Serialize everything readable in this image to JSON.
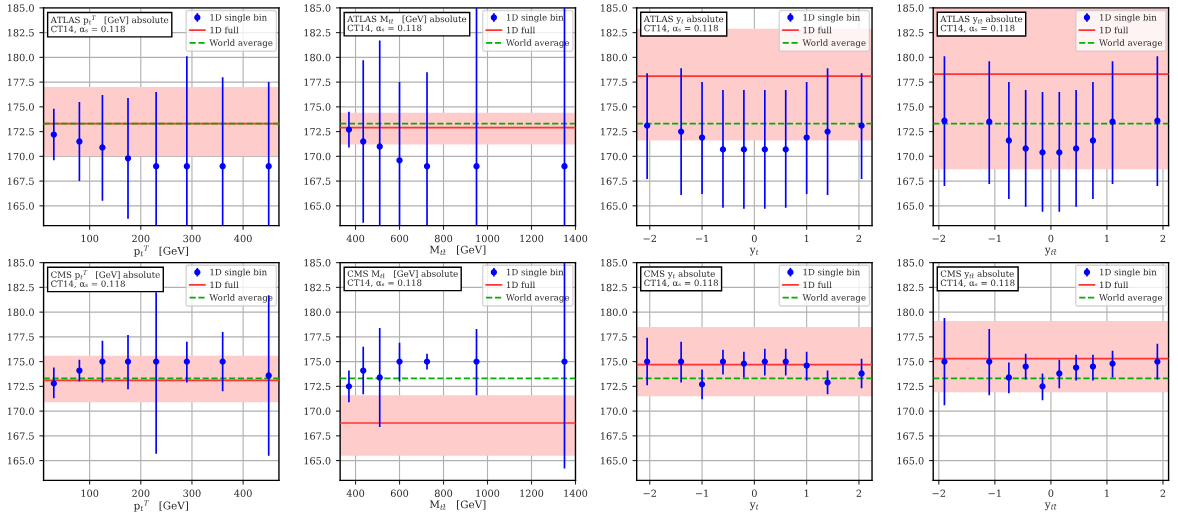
{
  "chart_data": [
    {
      "type": "scatter",
      "xlabel": "p$_{t}$$^{T}$   [GeV]",
      "annotations": [
        "ATLAS p$_{t}$$^{T}$   [GeV] absolute\nCT14, αₛ = 0.118"
      ],
      "xlim": [
        10,
        470
      ],
      "xticks": [
        100,
        200,
        300,
        400
      ],
      "ylim": [
        163,
        185
      ],
      "yticks": [
        {
          "value": 165,
          "label": "165.0"
        },
        {
          "value": 167.5,
          "label": "167.5"
        },
        {
          "value": 170,
          "label": "170.0"
        },
        {
          "value": 172.5,
          "label": "172.5"
        },
        {
          "value": 175,
          "label": "175.0"
        },
        {
          "value": 177.5,
          "label": "177.5"
        },
        {
          "value": 180,
          "label": "180.0"
        },
        {
          "value": 182.5,
          "label": "182.5"
        },
        {
          "value": 185,
          "label": "185.0"
        }
      ],
      "grid": true,
      "legend": "top right",
      "marker": "circle",
      "series": [
        {
          "name": "1D single bin",
          "color": "#0000ff",
          "x": [
            30,
            80,
            125,
            175,
            230,
            290,
            360,
            450
          ],
          "values": [
            172.2,
            171.5,
            170.9,
            169.8,
            169,
            169,
            169,
            169
          ],
          "errors": [
            [
              169.6,
              174.8
            ],
            [
              167.5,
              175.5
            ],
            [
              165.5,
              176.2
            ],
            [
              163.7,
              175.9
            ],
            [
              163,
              176.5
            ],
            [
              163,
              180.1
            ],
            [
              163,
              178
            ],
            [
              163,
              177.5
            ]
          ]
        }
      ],
      "ref_lines": [
        {
          "axis": "y",
          "value": 173.3,
          "label": "1D full",
          "color": "#ff3333",
          "line_style": "solid"
        },
        {
          "axis": "y",
          "value": 173.3,
          "label": "World average",
          "color": "#00b000",
          "line_style": "dashed"
        }
      ],
      "bands": [
        {
          "axis": "y",
          "from": 170,
          "to": 177,
          "color": "#ffcccc"
        }
      ]
    },
    {
      "type": "scatter",
      "xlabel": "M$_{tt̄}$   [GeV]",
      "annotations": [
        "ATLAS M$_{tt̄}$   [GeV] absolute\nCT14, αₛ = 0.118"
      ],
      "xlim": [
        330,
        1400
      ],
      "xticks": [
        400,
        600,
        800,
        1000,
        1200,
        1400
      ],
      "ylim": [
        163,
        185
      ],
      "yticks": [
        {
          "value": 165,
          "label": "165.0"
        },
        {
          "value": 167.5,
          "label": "167.5"
        },
        {
          "value": 170,
          "label": "170.0"
        },
        {
          "value": 172.5,
          "label": "172.5"
        },
        {
          "value": 175,
          "label": "175.0"
        },
        {
          "value": 177.5,
          "label": "177.5"
        },
        {
          "value": 180,
          "label": "180.0"
        },
        {
          "value": 182.5,
          "label": "182.5"
        },
        {
          "value": 185,
          "label": "185.0"
        }
      ],
      "grid": true,
      "legend": "top right",
      "marker": "circle",
      "series": [
        {
          "name": "1D single bin",
          "color": "#0000ff",
          "x": [
            370,
            435,
            510,
            600,
            725,
            950,
            1350
          ],
          "values": [
            172.7,
            171.5,
            171,
            169.6,
            169,
            169,
            169
          ],
          "errors": [
            [
              170.9,
              174.5
            ],
            [
              163.3,
              179.7
            ],
            [
              163,
              181.7
            ],
            [
              163,
              177.5
            ],
            [
              163,
              178.5
            ],
            [
              163,
              185
            ],
            [
              163,
              185
            ]
          ]
        }
      ],
      "ref_lines": [
        {
          "axis": "y",
          "value": 172.9,
          "label": "1D full",
          "color": "#ff3333",
          "line_style": "solid"
        },
        {
          "axis": "y",
          "value": 173.3,
          "label": "World average",
          "color": "#00b000",
          "line_style": "dashed"
        }
      ],
      "bands": [
        {
          "axis": "y",
          "from": 171.2,
          "to": 174.4,
          "color": "#ffcccc"
        }
      ]
    },
    {
      "type": "scatter",
      "xlabel": "y$_{t}$",
      "annotations": [
        "ATLAS y$_{t}$ absolute\nCT14, αₛ = 0.118"
      ],
      "xlim": [
        -2.25,
        2.25
      ],
      "xticks": [
        -2,
        -1,
        0,
        1,
        2
      ],
      "ylim": [
        163,
        185
      ],
      "yticks": [
        {
          "value": 165,
          "label": "165.0"
        },
        {
          "value": 167.5,
          "label": "167.5"
        },
        {
          "value": 170,
          "label": "170.0"
        },
        {
          "value": 172.5,
          "label": "172.5"
        },
        {
          "value": 175,
          "label": "175.0"
        },
        {
          "value": 177.5,
          "label": "177.5"
        },
        {
          "value": 180,
          "label": "180.0"
        },
        {
          "value": 182.5,
          "label": "182.5"
        },
        {
          "value": 185,
          "label": "185.0"
        }
      ],
      "grid": true,
      "legend": "top right",
      "marker": "circle",
      "series": [
        {
          "name": "1D single bin",
          "color": "#0000ff",
          "x": [
            -2.05,
            -1.4,
            -1,
            -0.6,
            -0.2,
            0.2,
            0.6,
            1,
            1.4,
            2.05
          ],
          "values": [
            173.1,
            172.5,
            171.9,
            170.7,
            170.7,
            170.7,
            170.7,
            171.9,
            172.5,
            173.1
          ],
          "errors": [
            [
              167.7,
              178.4
            ],
            [
              166.1,
              178.9
            ],
            [
              166.2,
              177.5
            ],
            [
              164.8,
              176.7
            ],
            [
              164.7,
              176.7
            ],
            [
              164.7,
              176.7
            ],
            [
              164.8,
              176.7
            ],
            [
              166.2,
              177.5
            ],
            [
              166.1,
              178.9
            ],
            [
              167.7,
              178.4
            ]
          ]
        }
      ],
      "ref_lines": [
        {
          "axis": "y",
          "value": 178.1,
          "label": "1D full",
          "color": "#ff3333",
          "line_style": "solid"
        },
        {
          "axis": "y",
          "value": 173.3,
          "label": "World average",
          "color": "#00b000",
          "line_style": "dashed"
        }
      ],
      "bands": [
        {
          "axis": "y",
          "from": 171.6,
          "to": 182.9,
          "color": "#ffcccc"
        }
      ]
    },
    {
      "type": "scatter",
      "xlabel": "y$_{tt̄}$",
      "annotations": [
        "ATLAS y$_{tt̄}$ absolute\nCT14, αₛ = 0.118"
      ],
      "xlim": [
        -2.1,
        2.1
      ],
      "xticks": [
        -2,
        -1,
        0,
        1,
        2
      ],
      "ylim": [
        163,
        185
      ],
      "yticks": [
        {
          "value": 165,
          "label": "165.0"
        },
        {
          "value": 167.5,
          "label": "167.5"
        },
        {
          "value": 170,
          "label": "170.0"
        },
        {
          "value": 172.5,
          "label": "172.5"
        },
        {
          "value": 175,
          "label": "175.0"
        },
        {
          "value": 177.5,
          "label": "177.5"
        },
        {
          "value": 180,
          "label": "180.0"
        },
        {
          "value": 182.5,
          "label": "182.5"
        },
        {
          "value": 185,
          "label": "185.0"
        }
      ],
      "grid": true,
      "legend": "top right",
      "marker": "circle",
      "series": [
        {
          "name": "1D single bin",
          "color": "#0000ff",
          "x": [
            -1.9,
            -1.1,
            -0.75,
            -0.45,
            -0.15,
            0.15,
            0.45,
            0.75,
            1.1,
            1.9
          ],
          "values": [
            173.6,
            173.5,
            171.6,
            170.8,
            170.4,
            170.4,
            170.8,
            171.6,
            173.5,
            173.6
          ],
          "errors": [
            [
              167,
              180.1
            ],
            [
              167.2,
              179.6
            ],
            [
              165.7,
              177.5
            ],
            [
              164.9,
              176.7
            ],
            [
              164.4,
              176.5
            ],
            [
              164.4,
              176.5
            ],
            [
              164.9,
              176.7
            ],
            [
              165.7,
              177.5
            ],
            [
              167.2,
              179.6
            ],
            [
              167,
              180.1
            ]
          ]
        }
      ],
      "ref_lines": [
        {
          "axis": "y",
          "value": 178.3,
          "label": "1D full",
          "color": "#ff3333",
          "line_style": "solid"
        },
        {
          "axis": "y",
          "value": 173.3,
          "label": "World average",
          "color": "#00b000",
          "line_style": "dashed"
        }
      ],
      "bands": [
        {
          "axis": "y",
          "from": 168.7,
          "to": 185,
          "color": "#ffcccc"
        }
      ]
    },
    {
      "type": "scatter",
      "xlabel": "p$_{t}$$^{T}$   [GeV]",
      "annotations": [
        "CMS p$_{t}$$^{T}$   [GeV] absolute\nCT14, αₛ = 0.118"
      ],
      "xlim": [
        10,
        470
      ],
      "xticks": [
        100,
        200,
        300,
        400
      ],
      "ylim": [
        163,
        185
      ],
      "yticks": [
        {
          "value": 165,
          "label": "165.0"
        },
        {
          "value": 167.5,
          "label": "167.5"
        },
        {
          "value": 170,
          "label": "170.0"
        },
        {
          "value": 172.5,
          "label": "172.5"
        },
        {
          "value": 175,
          "label": "175.0"
        },
        {
          "value": 177.5,
          "label": "177.5"
        },
        {
          "value": 180,
          "label": "180.0"
        },
        {
          "value": 182.5,
          "label": "182.5"
        },
        {
          "value": 185,
          "label": "185.0"
        }
      ],
      "grid": true,
      "legend": "top right",
      "marker": "circle",
      "series": [
        {
          "name": "1D single bin",
          "color": "#0000ff",
          "x": [
            30,
            80,
            125,
            175,
            230,
            290,
            360,
            450
          ],
          "values": [
            172.8,
            174.1,
            175,
            175,
            175,
            175,
            175,
            173.6
          ],
          "errors": [
            [
              171.3,
              174.4
            ],
            [
              173,
              175.2
            ],
            [
              172.9,
              177.1
            ],
            [
              172.2,
              177.7
            ],
            [
              165.7,
              182
            ],
            [
              172.9,
              177
            ],
            [
              172,
              178
            ],
            [
              165.5,
              181.7
            ]
          ]
        }
      ],
      "ref_lines": [
        {
          "axis": "y",
          "value": 173.1,
          "label": "1D full",
          "color": "#ff3333",
          "line_style": "solid"
        },
        {
          "axis": "y",
          "value": 173.3,
          "label": "World average",
          "color": "#00b000",
          "line_style": "dashed"
        }
      ],
      "bands": [
        {
          "axis": "y",
          "from": 170.9,
          "to": 175.6,
          "color": "#ffcccc"
        }
      ]
    },
    {
      "type": "scatter",
      "xlabel": "M$_{tt̄}$   [GeV]",
      "annotations": [
        "CMS M$_{tt̄}$   [GeV] absolute\nCT14, αₛ = 0.118"
      ],
      "xlim": [
        330,
        1400
      ],
      "xticks": [
        400,
        600,
        800,
        1000,
        1200,
        1400
      ],
      "ylim": [
        163,
        185
      ],
      "yticks": [
        {
          "value": 165,
          "label": "165.0"
        },
        {
          "value": 167.5,
          "label": "167.5"
        },
        {
          "value": 170,
          "label": "170.0"
        },
        {
          "value": 172.5,
          "label": "172.5"
        },
        {
          "value": 175,
          "label": "175.0"
        },
        {
          "value": 177.5,
          "label": "177.5"
        },
        {
          "value": 180,
          "label": "180.0"
        },
        {
          "value": 182.5,
          "label": "182.5"
        },
        {
          "value": 185,
          "label": "185.0"
        }
      ],
      "grid": true,
      "legend": "top right",
      "marker": "circle",
      "series": [
        {
          "name": "1D single bin",
          "color": "#0000ff",
          "x": [
            370,
            435,
            510,
            600,
            725,
            950,
            1350
          ],
          "values": [
            172.5,
            174.1,
            173.4,
            175,
            175,
            175,
            175
          ],
          "errors": [
            [
              170.9,
              174.1
            ],
            [
              171.7,
              176.5
            ],
            [
              168.4,
              178.4
            ],
            [
              173,
              176.9
            ],
            [
              174.2,
              175.8
            ],
            [
              171.6,
              178.3
            ],
            [
              164.2,
              185
            ]
          ]
        }
      ],
      "ref_lines": [
        {
          "axis": "y",
          "value": 168.8,
          "label": "1D full",
          "color": "#ff3333",
          "line_style": "solid"
        },
        {
          "axis": "y",
          "value": 173.3,
          "label": "World average",
          "color": "#00b000",
          "line_style": "dashed"
        }
      ],
      "bands": [
        {
          "axis": "y",
          "from": 165.5,
          "to": 171.6,
          "color": "#ffcccc"
        }
      ]
    },
    {
      "type": "scatter",
      "xlabel": "y$_{t}$",
      "annotations": [
        "CMS y$_{t}$ absolute\nCT14, αₛ = 0.118"
      ],
      "xlim": [
        -2.25,
        2.25
      ],
      "xticks": [
        -2,
        -1,
        0,
        1,
        2
      ],
      "ylim": [
        163,
        185
      ],
      "yticks": [
        {
          "value": 165,
          "label": "165.0"
        },
        {
          "value": 167.5,
          "label": "167.5"
        },
        {
          "value": 170,
          "label": "170.0"
        },
        {
          "value": 172.5,
          "label": "172.5"
        },
        {
          "value": 175,
          "label": "175.0"
        },
        {
          "value": 177.5,
          "label": "177.5"
        },
        {
          "value": 180,
          "label": "180.0"
        },
        {
          "value": 182.5,
          "label": "182.5"
        },
        {
          "value": 185,
          "label": "185.0"
        }
      ],
      "grid": true,
      "legend": "top right",
      "marker": "circle",
      "series": [
        {
          "name": "1D single bin",
          "color": "#0000ff",
          "x": [
            -2.05,
            -1.4,
            -1,
            -0.6,
            -0.2,
            0.2,
            0.6,
            1,
            1.4,
            2.05
          ],
          "values": [
            175,
            175,
            172.7,
            175,
            174.8,
            175,
            175,
            174.6,
            172.9,
            173.8
          ],
          "errors": [
            [
              172.6,
              177.4
            ],
            [
              172.9,
              177
            ],
            [
              171.2,
              174.2
            ],
            [
              173.7,
              176.2
            ],
            [
              173.4,
              176
            ],
            [
              173.6,
              176.3
            ],
            [
              173.6,
              176.3
            ],
            [
              173.1,
              176
            ],
            [
              171.7,
              174.1
            ],
            [
              172.3,
              175.3
            ]
          ]
        }
      ],
      "ref_lines": [
        {
          "axis": "y",
          "value": 174.7,
          "label": "1D full",
          "color": "#ff3333",
          "line_style": "solid"
        },
        {
          "axis": "y",
          "value": 173.3,
          "label": "World average",
          "color": "#00b000",
          "line_style": "dashed"
        }
      ],
      "bands": [
        {
          "axis": "y",
          "from": 171.5,
          "to": 178.5,
          "color": "#ffcccc"
        }
      ]
    },
    {
      "type": "scatter",
      "xlabel": "y$_{tt̄}$",
      "annotations": [
        "CMS y$_{tt̄}$ absolute\nCT14, αₛ = 0.118"
      ],
      "xlim": [
        -2.1,
        2.1
      ],
      "xticks": [
        -2,
        -1,
        0,
        1,
        2
      ],
      "ylim": [
        163,
        185
      ],
      "yticks": [
        {
          "value": 165,
          "label": "165.0"
        },
        {
          "value": 167.5,
          "label": "167.5"
        },
        {
          "value": 170,
          "label": "170.0"
        },
        {
          "value": 172.5,
          "label": "172.5"
        },
        {
          "value": 175,
          "label": "175.0"
        },
        {
          "value": 177.5,
          "label": "177.5"
        },
        {
          "value": 180,
          "label": "180.0"
        },
        {
          "value": 182.5,
          "label": "182.5"
        },
        {
          "value": 185,
          "label": "185.0"
        }
      ],
      "grid": true,
      "legend": "top right",
      "marker": "circle",
      "series": [
        {
          "name": "1D single bin",
          "color": "#0000ff",
          "x": [
            -1.9,
            -1.1,
            -0.75,
            -0.45,
            -0.15,
            0.15,
            0.45,
            0.75,
            1.1,
            1.9
          ],
          "values": [
            175,
            175,
            173.4,
            174.5,
            172.5,
            173.8,
            174.4,
            174.5,
            174.8,
            175
          ],
          "errors": [
            [
              170.6,
              179.4
            ],
            [
              171.6,
              178.3
            ],
            [
              171.8,
              174.9
            ],
            [
              173.2,
              175.8
            ],
            [
              171.1,
              173.8
            ],
            [
              172.3,
              175.2
            ],
            [
              173.1,
              175.7
            ],
            [
              173.1,
              175.7
            ],
            [
              173.4,
              176.1
            ],
            [
              173.2,
              176.8
            ]
          ]
        }
      ],
      "ref_lines": [
        {
          "axis": "y",
          "value": 175.3,
          "label": "1D full",
          "color": "#ff3333",
          "line_style": "solid"
        },
        {
          "axis": "y",
          "value": 173.3,
          "label": "World average",
          "color": "#00b000",
          "line_style": "dashed"
        }
      ],
      "bands": [
        {
          "axis": "y",
          "from": 171.9,
          "to": 179.1,
          "color": "#ffcccc"
        }
      ]
    }
  ]
}
